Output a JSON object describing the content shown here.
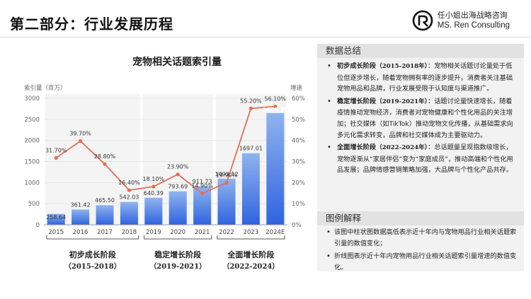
{
  "page_title": "第二部分：行业发展历程",
  "brand": {
    "name_cn": "任小姐出海战略咨询",
    "name_en": "MS. Ren Consulting",
    "logo_icon": "stylized-r-circle-icon"
  },
  "chart_data": {
    "type": "bar+line",
    "title": "宠物相关话题索引量",
    "ylabel_left": "索引量（百万）",
    "ylabel_right": "增速",
    "categories": [
      "2015",
      "2016",
      "2017",
      "2018",
      "2019",
      "2020",
      "2021",
      "2022",
      "2023",
      "2024E"
    ],
    "series": [
      {
        "name": "索引量",
        "kind": "bar",
        "values": [
          258.64,
          361.42,
          465.5,
          542.03,
          640.39,
          793.69,
          911.73,
          1093.12,
          1697.01,
          2649.2
        ],
        "labels": [
          "258.64",
          "361.42",
          "465.50",
          "542.03",
          "640.39",
          "793.69",
          "911.73",
          "1093.12",
          "1697.01",
          "2649.20"
        ]
      },
      {
        "name": "增速",
        "kind": "line",
        "values": [
          31.7,
          39.7,
          28.8,
          16.4,
          18.1,
          23.9,
          14.9,
          19.9,
          55.2,
          56.1
        ],
        "labels": [
          "31.70%",
          "39.70%",
          "28.80%",
          "16.40%",
          "18.10%",
          "23.90%",
          "14.90%",
          "19.90%",
          "55.20%",
          "56.10%"
        ]
      }
    ],
    "ylim_left": [
      0,
      3000
    ],
    "yticks_left": [
      "0",
      "500",
      "1000",
      "1500",
      "2000",
      "2500",
      "3000"
    ],
    "ylim_right": [
      0,
      60
    ],
    "yticks_right": [
      "0%",
      "10%",
      "20%",
      "30%",
      "40%",
      "50%",
      "60%"
    ],
    "grid": true,
    "colors": {
      "bar_top": "#8fb4ee",
      "bar_bottom": "#2f63e0",
      "line": "#e46d55",
      "grid": "#e6e6e6",
      "phase_bg": "#f4f4f4"
    },
    "phases": [
      {
        "label": "初步成长阶段",
        "years": "（2015-2018）",
        "from": 0,
        "to": 3
      },
      {
        "label": "稳定增长阶段",
        "years": "（2019-2021）",
        "from": 4,
        "to": 6
      },
      {
        "label": "全面增长阶段",
        "years": "（2022-2024）",
        "from": 7,
        "to": 9
      }
    ]
  },
  "panel": {
    "summary_title": "数据总结",
    "summary": [
      {
        "label": "初步成长阶段",
        "years": "（2015-2018年）",
        "text": "：宠物相关话题讨论量处于低位但逐步增长，随着宠物拥有率的逐步提升，消费者关注基础宠物用品和品牌，行业发展受限于认知度与渠道推广。"
      },
      {
        "label": "稳定增长阶段",
        "years": "（2019-2021年）",
        "text": "：话题讨论量快速增长，随着疫情推动宠物经济，消费者对宠物健康和个性化用品的关注增加；社交媒体（如TikTok）推动宠物文化传播，从基础需求向多元化需求转变，品牌和社交媒体成为主要驱动力。"
      },
      {
        "label": "全面增长阶段",
        "years": "（2022-2024年）",
        "text": "：总话题量呈现指数级增长，宠物逐渐从“家居伴侣”变为“家庭成员”，推动高端和个性化用品发展；品牌情感营销策略加强，大品牌与个性化产品共存。"
      }
    ],
    "legend_title": "图例解释",
    "legend_notes": [
      "该图中柱状图数据高低表示近十年内与宠物用品行业相关话题索引量的数值变化；",
      "折线图表示近十年内宠物用品行业相关话题索引量增速的数值变化。"
    ]
  }
}
